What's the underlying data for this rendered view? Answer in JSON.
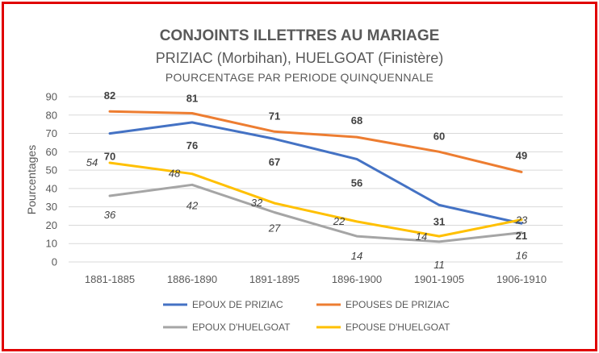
{
  "chart_data": {
    "type": "line",
    "title": "CONJOINTS ILLETTRES AU MARIAGE",
    "subtitle": "PRIZIAC (Morbihan), HUELGOAT (Finistère)",
    "subtitle2": "POURCENTAGE PAR PERIODE QUINQUENNALE",
    "ylabel": "Pourcentages",
    "xlabel": "",
    "ylim": [
      0,
      90
    ],
    "yticks": [
      0,
      10,
      20,
      30,
      40,
      50,
      60,
      70,
      80,
      90
    ],
    "grid": true,
    "legend_position": "bottom",
    "categories": [
      "1881-1885",
      "1886-1890",
      "1891-1895",
      "1896-1900",
      "1901-1905",
      "1906-1910"
    ],
    "series": [
      {
        "name": "EPOUX DE PRIZIAC",
        "color": "#4472c4",
        "label_style": "bold",
        "values": [
          70,
          76,
          67,
          56,
          31,
          21
        ],
        "label_values": [
          "70",
          "76",
          "67",
          "56",
          "31",
          "21"
        ]
      },
      {
        "name": "EPOUSES DE PRIZIAC",
        "color": "#ed7d31",
        "label_style": "bold",
        "values": [
          82,
          81,
          71,
          68,
          60,
          49
        ],
        "label_values": [
          "82",
          "81",
          "71",
          "68",
          "60",
          "49"
        ]
      },
      {
        "name": "EPOUX D'HUELGOAT",
        "color": "#a5a5a5",
        "label_style": "italic",
        "values": [
          36,
          42,
          27,
          14,
          11,
          16
        ],
        "label_values": [
          "36",
          "42",
          "27",
          "14",
          "11",
          "16"
        ]
      },
      {
        "name": "EPOUSE D'HUELGOAT",
        "color": "#ffc000",
        "label_style": "italic",
        "values": [
          54,
          48,
          32,
          22,
          14,
          23
        ],
        "label_values": [
          "54",
          "48",
          "32",
          "22",
          "14",
          "23"
        ]
      }
    ]
  }
}
